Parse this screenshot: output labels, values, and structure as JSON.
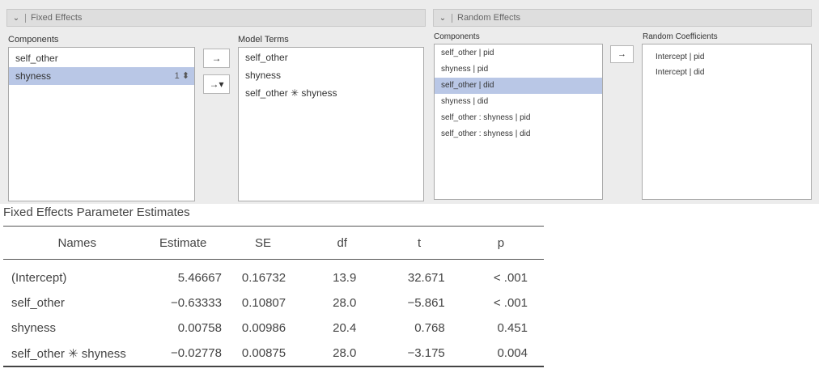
{
  "fixed": {
    "header": "Fixed Effects",
    "components_label": "Components",
    "components": [
      {
        "label": "self_other",
        "selected": false,
        "spinner": ""
      },
      {
        "label": "shyness",
        "selected": true,
        "spinner": "1 ⬍"
      }
    ],
    "btn_move": "→",
    "btn_move_dropdown": "→▾",
    "model_terms_label": "Model Terms",
    "model_terms": [
      "self_other",
      "shyness",
      "self_other ✳ shyness"
    ]
  },
  "random": {
    "header": "Random Effects",
    "components_label": "Components",
    "components": [
      {
        "label": "self_other | pid",
        "selected": false
      },
      {
        "label": "shyness | pid",
        "selected": false
      },
      {
        "label": "self_other | did",
        "selected": true
      },
      {
        "label": "shyness | did",
        "selected": false
      },
      {
        "label": "self_other : shyness | pid",
        "selected": false
      },
      {
        "label": "self_other : shyness | did",
        "selected": false
      }
    ],
    "btn_move": "→",
    "coefficients_label": "Random Coefficients",
    "coefficients": [
      "Intercept | pid",
      "Intercept | did"
    ]
  },
  "estimates": {
    "title": "Fixed Effects Parameter Estimates",
    "columns": [
      "Names",
      "Estimate",
      "SE",
      "df",
      "t",
      "p"
    ],
    "rows": [
      [
        "(Intercept)",
        "5.46667",
        "0.16732",
        "13.9",
        "32.671",
        "< .001"
      ],
      [
        "self_other",
        "−0.63333",
        "0.10807",
        "28.0",
        "−5.861",
        "< .001"
      ],
      [
        "shyness",
        "0.00758",
        "0.00986",
        "20.4",
        "0.768",
        "0.451"
      ],
      [
        "self_other ✳ shyness",
        "−0.02778",
        "0.00875",
        "28.0",
        "−3.175",
        "0.004"
      ]
    ]
  }
}
